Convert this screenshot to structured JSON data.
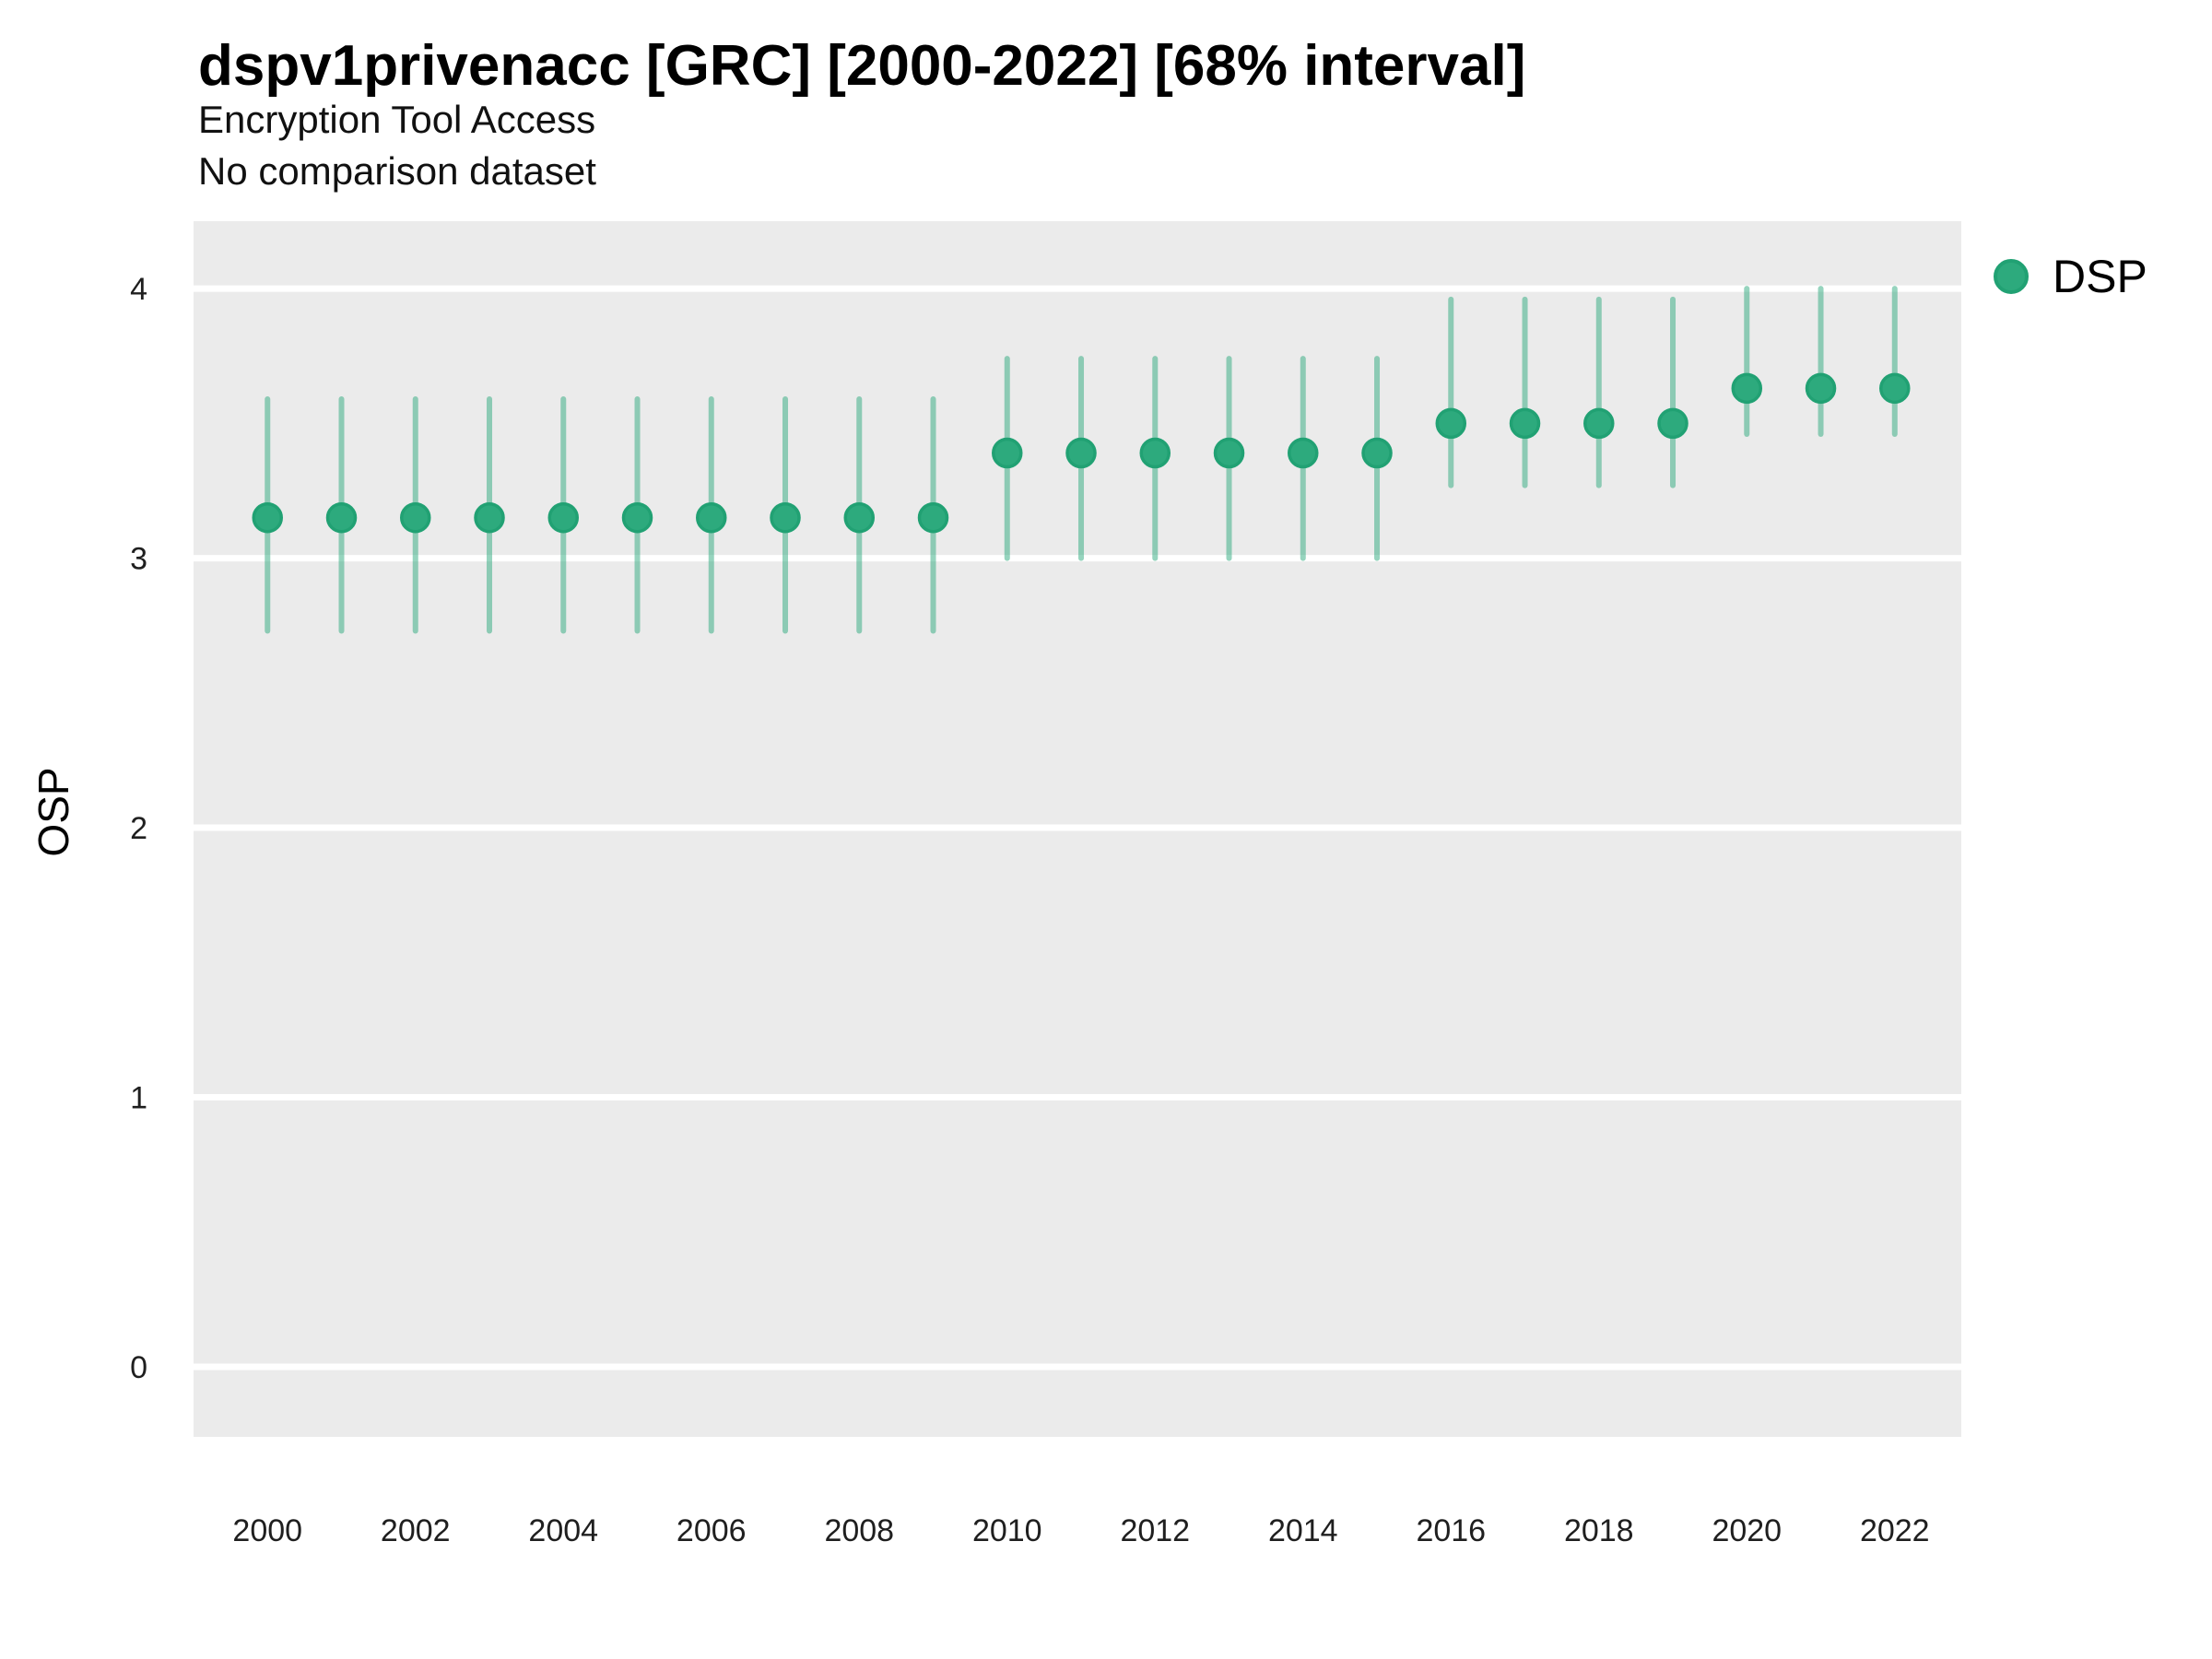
{
  "chart_data": {
    "type": "scatter",
    "variant": "pointrange",
    "title": "dspv1privenacc [GRC] [2000-2022] [68% interval]",
    "subtitle": "Encryption Tool Access",
    "note": "No comparison dataset",
    "interval_label": "68% interval",
    "xlabel": "",
    "ylabel": "OSP",
    "grid": "horizontal major gridlines only, white on grey panel",
    "axes": {
      "y_ticks": [
        0,
        1,
        2,
        3,
        4
      ],
      "x_ticks": [
        2000,
        2002,
        2004,
        2006,
        2008,
        2010,
        2012,
        2014,
        2016,
        2018,
        2020,
        2022
      ],
      "y_range": [
        -0.26,
        4.25
      ],
      "x_range": [
        1999.0,
        2022.9
      ]
    },
    "legend": {
      "position": "right",
      "entries": [
        {
          "label": "DSP",
          "color": "#2daa7d"
        }
      ]
    },
    "colors": {
      "point_fill": "#2daa7d",
      "point_stroke": "#21a173",
      "errorbar": "#2daa7d",
      "errorbar_opacity": 0.5,
      "panel_bg": "#ebebeb",
      "gridline": "#ffffff",
      "tick_text": "#1f1f1f"
    },
    "series": [
      {
        "name": "DSP",
        "points": [
          {
            "x": 2000,
            "y": 3.15,
            "y_low": 2.73,
            "y_high": 3.59
          },
          {
            "x": 2001,
            "y": 3.15,
            "y_low": 2.73,
            "y_high": 3.59
          },
          {
            "x": 2002,
            "y": 3.15,
            "y_low": 2.73,
            "y_high": 3.59
          },
          {
            "x": 2003,
            "y": 3.15,
            "y_low": 2.73,
            "y_high": 3.59
          },
          {
            "x": 2004,
            "y": 3.15,
            "y_low": 2.73,
            "y_high": 3.59
          },
          {
            "x": 2005,
            "y": 3.15,
            "y_low": 2.73,
            "y_high": 3.59
          },
          {
            "x": 2006,
            "y": 3.15,
            "y_low": 2.73,
            "y_high": 3.59
          },
          {
            "x": 2007,
            "y": 3.15,
            "y_low": 2.73,
            "y_high": 3.59
          },
          {
            "x": 2008,
            "y": 3.15,
            "y_low": 2.73,
            "y_high": 3.59
          },
          {
            "x": 2009,
            "y": 3.15,
            "y_low": 2.73,
            "y_high": 3.59
          },
          {
            "x": 2010,
            "y": 3.39,
            "y_low": 3.0,
            "y_high": 3.74
          },
          {
            "x": 2011,
            "y": 3.39,
            "y_low": 3.0,
            "y_high": 3.74
          },
          {
            "x": 2012,
            "y": 3.39,
            "y_low": 3.0,
            "y_high": 3.74
          },
          {
            "x": 2013,
            "y": 3.39,
            "y_low": 3.0,
            "y_high": 3.74
          },
          {
            "x": 2014,
            "y": 3.39,
            "y_low": 3.0,
            "y_high": 3.74
          },
          {
            "x": 2015,
            "y": 3.39,
            "y_low": 3.0,
            "y_high": 3.74
          },
          {
            "x": 2016,
            "y": 3.5,
            "y_low": 3.27,
            "y_high": 3.96
          },
          {
            "x": 2017,
            "y": 3.5,
            "y_low": 3.27,
            "y_high": 3.96
          },
          {
            "x": 2018,
            "y": 3.5,
            "y_low": 3.27,
            "y_high": 3.96
          },
          {
            "x": 2019,
            "y": 3.5,
            "y_low": 3.27,
            "y_high": 3.96
          },
          {
            "x": 2020,
            "y": 3.63,
            "y_low": 3.46,
            "y_high": 4.0
          },
          {
            "x": 2021,
            "y": 3.63,
            "y_low": 3.46,
            "y_high": 4.0
          },
          {
            "x": 2022,
            "y": 3.63,
            "y_low": 3.46,
            "y_high": 4.0
          }
        ]
      }
    ]
  }
}
